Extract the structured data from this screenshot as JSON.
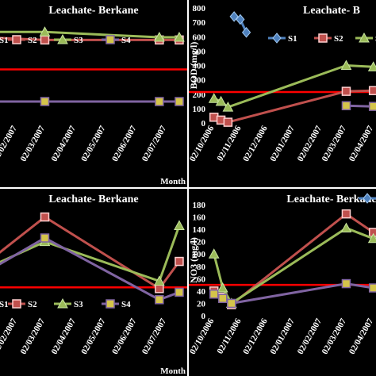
{
  "chart_data": [
    {
      "panel": "top-left",
      "type": "line",
      "title": "Leachate- Berkane",
      "xlabel": "Month",
      "ylabel": "",
      "x_ticks": [
        "02/02/2007",
        "02/03/2007",
        "02/04/2007",
        "02/05/2007",
        "02/06/2007",
        "02/07/2007"
      ],
      "legend": [
        "S1",
        "S2",
        "S3",
        "S4"
      ],
      "legend_position": "top",
      "grid": false,
      "series": [
        {
          "name": "S2",
          "color": "#c0504d",
          "marker": "square",
          "points": [
            [
              "01/01/2007",
              12
            ],
            [
              "02/03/2007",
              11
            ],
            [
              "25/06/2007",
              11
            ],
            [
              "15/07/2007",
              11
            ]
          ]
        },
        {
          "name": "S3",
          "color": "#9bbb59",
          "marker": "triangle",
          "points": [
            [
              "01/01/2007",
              14
            ],
            [
              "02/03/2007",
              14
            ],
            [
              "25/06/2007",
              12
            ],
            [
              "15/07/2007",
              12
            ]
          ]
        },
        {
          "name": "S4",
          "color": "#8064a2",
          "marker": "square",
          "points": [
            [
              "01/01/2007",
              -12
            ],
            [
              "02/03/2007",
              -12
            ],
            [
              "25/06/2007",
              -12
            ],
            [
              "15/07/2007",
              -12
            ]
          ]
        }
      ],
      "reference_line": {
        "value": 0,
        "color": "#ff0000"
      }
    },
    {
      "panel": "top-right",
      "type": "line",
      "title": "Leachate- B",
      "xlabel": "",
      "ylabel": "BOD (mg/l)",
      "ylim": [
        0,
        800
      ],
      "y_ticks": [
        0,
        100,
        200,
        300,
        400,
        500,
        600,
        700,
        800
      ],
      "x_ticks": [
        "02/10/2006",
        "02/11/2006",
        "02/12/2006",
        "02/01/2007",
        "02/02/2007",
        "02/03/2007",
        "02/04/2007"
      ],
      "legend": [
        "S1",
        "S2",
        "S3"
      ],
      "legend_position": "top-right",
      "grid": false,
      "series": [
        {
          "name": "S1",
          "color": "#4f81bd",
          "marker": "diamond",
          "points": [
            [
              "25/10/2006",
              740
            ],
            [
              "01/11/2006",
              720
            ],
            [
              "08/11/2006",
              630
            ]
          ]
        },
        {
          "name": "S2",
          "color": "#c0504d",
          "marker": "square",
          "points": [
            [
              "02/10/2006",
              40
            ],
            [
              "10/10/2006",
              20
            ],
            [
              "18/10/2006",
              5
            ],
            [
              "02/03/2007",
              220
            ],
            [
              "02/04/2007",
              225
            ]
          ]
        },
        {
          "name": "S3",
          "color": "#9bbb59",
          "marker": "triangle",
          "points": [
            [
              "02/10/2006",
              170
            ],
            [
              "10/10/2006",
              150
            ],
            [
              "18/10/2006",
              110
            ],
            [
              "02/03/2007",
              400
            ],
            [
              "02/04/2007",
              390
            ]
          ]
        },
        {
          "name": "S4",
          "color": "#8064a2",
          "marker": "square",
          "points": [
            [
              "02/03/2007",
              120
            ],
            [
              "02/04/2007",
              115
            ]
          ]
        }
      ],
      "reference_line": {
        "value": 215,
        "color": "#ff0000"
      }
    },
    {
      "panel": "bottom-left",
      "type": "line",
      "title": "Leachate- Berkane",
      "xlabel": "Month",
      "ylabel": "",
      "x_ticks": [
        "02/02/2007",
        "02/03/2007",
        "02/04/2007",
        "02/05/2007",
        "02/06/2007",
        "02/07/2007"
      ],
      "legend": [
        "S1",
        "S2",
        "S3",
        "S4"
      ],
      "legend_position": "bottom",
      "grid": false,
      "series": [
        {
          "name": "S2",
          "color": "#c0504d",
          "marker": "square",
          "points": [
            [
              "01/01/2007",
              62
            ],
            [
              "02/03/2007",
              100
            ],
            [
              "25/06/2007",
              42
            ],
            [
              "15/07/2007",
              64
            ]
          ]
        },
        {
          "name": "S3",
          "color": "#9bbb59",
          "marker": "triangle",
          "points": [
            [
              "01/01/2007",
              58
            ],
            [
              "02/03/2007",
              80
            ],
            [
              "25/06/2007",
              48
            ],
            [
              "15/07/2007",
              93
            ]
          ]
        },
        {
          "name": "S4",
          "color": "#8064a2",
          "marker": "square",
          "points": [
            [
              "01/01/2007",
              55
            ],
            [
              "02/03/2007",
              83
            ],
            [
              "25/06/2007",
              33
            ],
            [
              "15/07/2007",
              39
            ]
          ]
        }
      ],
      "reference_line": {
        "value": 43,
        "color": "#ff0000"
      }
    },
    {
      "panel": "bottom-right",
      "type": "line",
      "title": "Leachate- Berkane",
      "xlabel": "",
      "ylabel": "NO3 (mg/l)",
      "ylim": [
        0,
        180
      ],
      "y_ticks": [
        0,
        20,
        40,
        60,
        80,
        100,
        120,
        140,
        160,
        180
      ],
      "x_ticks": [
        "02/10/2006",
        "02/11/2006",
        "02/12/2006",
        "02/01/2007",
        "02/02/2007",
        "02/03/2007",
        "02/04/2007"
      ],
      "legend": [],
      "legend_position": "top-right",
      "grid": false,
      "series": [
        {
          "name": "S1",
          "color": "#4f81bd",
          "marker": "diamond",
          "points": []
        },
        {
          "name": "S2",
          "color": "#c0504d",
          "marker": "square",
          "points": [
            [
              "02/10/2006",
              40
            ],
            [
              "12/10/2006",
              30
            ],
            [
              "22/10/2006",
              18
            ],
            [
              "02/03/2007",
              165
            ],
            [
              "02/04/2007",
              135
            ]
          ]
        },
        {
          "name": "S3",
          "color": "#9bbb59",
          "marker": "triangle",
          "points": [
            [
              "02/10/2006",
              100
            ],
            [
              "12/10/2006",
              45
            ],
            [
              "22/10/2006",
              20
            ],
            [
              "02/03/2007",
              142
            ],
            [
              "02/04/2007",
              125
            ]
          ]
        },
        {
          "name": "S4",
          "color": "#8064a2",
          "marker": "square",
          "points": [
            [
              "02/10/2006",
              35
            ],
            [
              "12/10/2006",
              28
            ],
            [
              "22/10/2006",
              20
            ],
            [
              "02/03/2007",
              52
            ],
            [
              "02/04/2007",
              45
            ]
          ]
        }
      ],
      "reference_line": {
        "value": 50,
        "color": "#ff0000"
      }
    }
  ]
}
